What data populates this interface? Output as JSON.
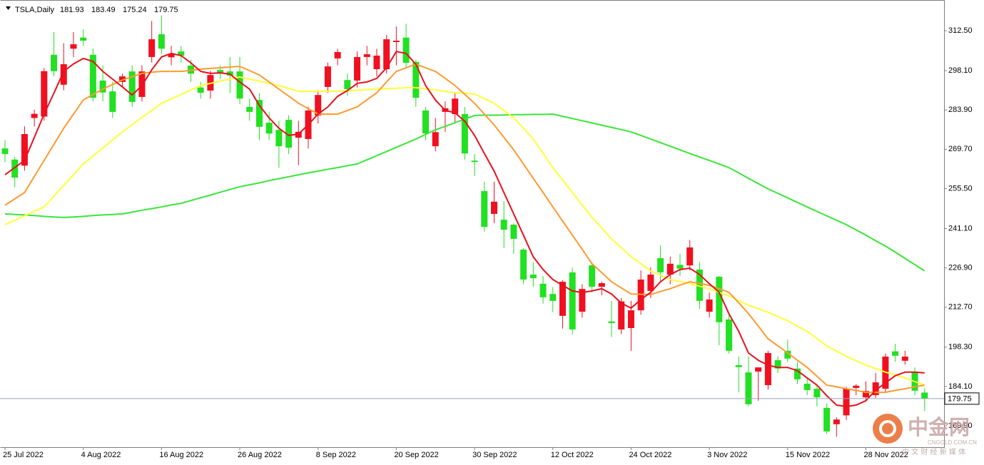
{
  "chart_data": {
    "type": "candlestick",
    "symbol": "TSLA,Daily",
    "categories": [
      "25 Jul 2022",
      null,
      null,
      null,
      null,
      null,
      null,
      null,
      "4 Aug 2022",
      null,
      null,
      null,
      null,
      null,
      null,
      null,
      "16 Aug 2022",
      null,
      null,
      null,
      null,
      null,
      null,
      null,
      "26 Aug 2022",
      null,
      null,
      null,
      null,
      null,
      null,
      null,
      "8 Sep 2022",
      null,
      null,
      null,
      null,
      null,
      null,
      null,
      "20 Sep 2022",
      null,
      null,
      null,
      null,
      null,
      null,
      null,
      "30 Sep 2022",
      null,
      null,
      null,
      null,
      null,
      null,
      null,
      "12 Oct 2022",
      null,
      null,
      null,
      null,
      null,
      null,
      null,
      "24 Oct 2022",
      null,
      null,
      null,
      null,
      null,
      null,
      null,
      "3 Nov 2022",
      null,
      null,
      null,
      null,
      null,
      null,
      null,
      "15 Nov 2022",
      null,
      null,
      null,
      null,
      null,
      null,
      null,
      "28 Nov 2022",
      null,
      null,
      null,
      null,
      null,
      null
    ],
    "open": [
      270,
      266,
      263.8,
      281,
      281.5,
      303.8,
      293,
      306,
      310,
      303.8,
      294.5,
      290.6,
      294,
      297.8,
      288.6,
      303,
      311.2,
      302.9,
      305,
      299.9,
      292,
      290.9,
      298.3,
      297.8,
      297.8,
      285,
      287.5,
      279.3,
      276.7,
      280.3,
      273.9,
      273.4,
      281.9,
      292.2,
      302.5,
      294.7,
      294.5,
      303,
      298.6,
      298.6,
      308.4,
      310,
      301.2,
      283.7,
      270.8,
      283.2,
      282.4,
      282.4,
      265.6,
      254.6,
      246.4,
      244.3,
      242.5,
      233.5,
      224.5,
      221.2,
      217.5,
      209.6,
      225.3,
      211.1,
      227.8,
      220.1,
      207.6,
      204.7,
      205.2,
      211.6,
      218.6,
      230.4,
      224.5,
      228,
      227.8,
      226.3,
      211.1,
      223.7,
      208.3,
      191.8,
      189.2,
      189.5,
      184.6,
      193.6,
      197,
      190.6,
      185.1,
      183.3,
      176.4,
      170.5,
      173.7,
      183.6,
      180.2,
      181,
      183.3,
      196.8,
      193.4,
      189.2,
      181.93
    ],
    "high": [
      273,
      267,
      278,
      284,
      299,
      312,
      308,
      312,
      313,
      306,
      300,
      294,
      297,
      300,
      300,
      316,
      318,
      307,
      307,
      302,
      294,
      298,
      300,
      303,
      303,
      288,
      290,
      283,
      280,
      282,
      280,
      285,
      291,
      301,
      306,
      297,
      305,
      307,
      306,
      311,
      314,
      315,
      302,
      285,
      281,
      287,
      290,
      285,
      268,
      258,
      258,
      251,
      243,
      234,
      229,
      224,
      220,
      222.5,
      227,
      221,
      229,
      222,
      215,
      216,
      215,
      226,
      227,
      235,
      231,
      232,
      237,
      229,
      218,
      224,
      210,
      195,
      195,
      191,
      197,
      195,
      201,
      193,
      187,
      185,
      178,
      173,
      184,
      185,
      186,
      189,
      196,
      199.5,
      197,
      191,
      183.49
    ],
    "low": [
      265,
      256,
      262,
      278,
      280,
      296,
      291,
      303,
      307,
      287,
      287,
      281,
      292,
      285,
      287,
      301,
      304,
      300,
      301,
      294,
      288,
      288,
      295,
      290,
      286,
      280,
      273,
      273,
      263,
      268,
      264,
      270,
      279,
      290,
      300,
      289,
      292,
      300,
      296,
      297,
      300,
      299,
      285,
      273,
      269,
      276,
      279,
      266,
      260,
      240,
      243,
      234,
      232,
      221,
      220,
      214,
      211,
      205,
      203,
      209,
      218,
      217,
      202,
      203,
      197,
      210,
      216,
      222,
      221,
      224,
      226,
      212,
      209,
      199,
      196,
      182,
      177,
      179,
      183,
      189,
      193,
      185,
      181,
      177,
      167,
      166,
      172,
      181,
      179,
      180,
      182,
      193,
      192,
      181,
      175.24
    ],
    "close": [
      268,
      259.5,
      275.2,
      282.5,
      297.9,
      297.9,
      300.4,
      307.6,
      308.9,
      288.3,
      290.2,
      283.2,
      296,
      286.8,
      297.8,
      309.4,
      306,
      304.2,
      303.5,
      297,
      290.1,
      296.5,
      297,
      296.3,
      288,
      283.2,
      277.8,
      275.4,
      270.8,
      270.3,
      276,
      283.7,
      289.3,
      299.6,
      304.8,
      291.4,
      303,
      304,
      303.5,
      309.4,
      308.9,
      300.9,
      288.3,
      275.4,
      275.9,
      284.5,
      288,
      268.2,
      265.1,
      241.7,
      250.8,
      240.7,
      237.4,
      222.7,
      223.2,
      216.3,
      215,
      221.9,
      204.7,
      219.3,
      220.1,
      221.4,
      207,
      214.8,
      211.6,
      222.7,
      224.5,
      225.3,
      228.4,
      226.6,
      234.3,
      215,
      215.5,
      207.3,
      197,
      191.1,
      177.7,
      191,
      196.2,
      190.6,
      194.2,
      186.7,
      182.8,
      180.2,
      167.9,
      172.2,
      183.3,
      184.4,
      182.5,
      185.6,
      194.9,
      195.2,
      194.9,
      182.6,
      179.75
    ],
    "up_color": "#f01020",
    "down_color": "#22e022",
    "moving_averages": [
      {
        "color": "#39e639",
        "values": [
          246.4,
          246.2,
          246,
          245.8,
          245.5,
          245.3,
          245.1,
          245.3,
          245.5,
          245.8,
          246,
          246.2,
          246.4,
          247,
          247.7,
          248.3,
          248.9,
          249.6,
          250.2,
          251.2,
          252.2,
          253.2,
          254.2,
          255.2,
          256.2,
          256.9,
          257.6,
          258.4,
          259.1,
          259.8,
          260.5,
          261.2,
          261.8,
          262.5,
          263.1,
          263.8,
          264.4,
          265.9,
          267.4,
          268.9,
          270.4,
          271.9,
          273.4,
          275.1,
          276.7,
          278,
          279.3,
          280.6,
          281.9,
          282,
          282,
          282.1,
          282.2,
          282.2,
          282.3,
          282.3,
          282.4,
          281.6,
          280.8,
          280,
          279.2,
          278.4,
          277.6,
          276.8,
          276,
          274.7,
          273.4,
          272.1,
          270.8,
          269.5,
          268.2,
          266.9,
          265.7,
          264.4,
          263.1,
          261.2,
          259.2,
          257.3,
          255.4,
          253.8,
          252.2,
          250.5,
          248.9,
          247.3,
          245.7,
          244.1,
          242.5,
          240.6,
          238.7,
          236.7,
          234.8,
          232.6,
          230.3,
          228.1,
          225.8
        ]
      },
      {
        "color": "#ffff33",
        "values": [
          242.5,
          244.1,
          245.7,
          247.3,
          248.9,
          252.8,
          256.7,
          260.5,
          264.4,
          267.3,
          270.2,
          273.1,
          276,
          278.6,
          281.2,
          283.7,
          286.3,
          287.9,
          289.5,
          291.1,
          292.7,
          293.5,
          294.3,
          295,
          295.8,
          295,
          294.3,
          293.5,
          292.7,
          291.7,
          290.6,
          290.6,
          290.6,
          290.6,
          290.6,
          290.8,
          291,
          291.2,
          291.4,
          291.6,
          291.7,
          291.9,
          292,
          291.5,
          291.1,
          290.6,
          290.1,
          289.9,
          289.6,
          288,
          286.3,
          283.7,
          281.1,
          277.3,
          273.4,
          268.3,
          263.1,
          258.6,
          254.1,
          249.6,
          245.1,
          241.3,
          237.4,
          234.2,
          230.9,
          228.4,
          225.8,
          224.3,
          222.7,
          222,
          221.2,
          220.3,
          219.4,
          218.1,
          216.8,
          215.1,
          213.4,
          212.2,
          210.9,
          209.4,
          207.8,
          205.9,
          204,
          201.4,
          198.8,
          196.9,
          195,
          193.4,
          191.8,
          190.6,
          189.3,
          188.3,
          187.2,
          185.9,
          184.6
        ]
      },
      {
        "color": "#ff9a2e",
        "values": [
          249.5,
          251.8,
          254.1,
          259.9,
          265.7,
          271.5,
          277.3,
          282.4,
          287.5,
          289.5,
          291.4,
          293.1,
          294.7,
          295.9,
          297.1,
          297.5,
          297.8,
          297.8,
          297.8,
          298.2,
          298.6,
          298.9,
          299.1,
          299.4,
          299.6,
          298.1,
          296.5,
          294,
          291.4,
          288.9,
          286.3,
          284.4,
          282.4,
          282.4,
          282.4,
          283.7,
          285,
          287.6,
          290.1,
          294,
          297.8,
          299.1,
          300.4,
          299.1,
          297.8,
          295.3,
          292.7,
          289.5,
          286.3,
          282.4,
          278.5,
          274,
          269.5,
          264.4,
          259.2,
          254.1,
          248.9,
          243.8,
          238.7,
          233.6,
          228.4,
          225.2,
          221.9,
          219.7,
          217.5,
          217.4,
          217.3,
          218.4,
          219.4,
          220.7,
          221.9,
          221.3,
          220.6,
          219.4,
          218.1,
          214.3,
          210.4,
          205.9,
          201.3,
          198.8,
          196.2,
          193.6,
          191,
          187.8,
          184.6,
          184,
          183.3,
          182.7,
          182,
          182,
          182,
          182.7,
          183.3,
          184,
          184.6
        ]
      },
      {
        "color": "#e8101c",
        "values": [
          260.5,
          263.1,
          265.7,
          274,
          282.4,
          290,
          297.8,
          300.5,
          302.5,
          301.4,
          297.8,
          295,
          292.2,
          289.3,
          292.7,
          298.4,
          303,
          304.3,
          303.5,
          300.9,
          297.8,
          297.1,
          297.3,
          296.8,
          294,
          291.4,
          285.5,
          281,
          277.3,
          274.7,
          275.2,
          278.6,
          282.4,
          285,
          288.8,
          290.9,
          293.5,
          294,
          295.3,
          299.1,
          305,
          304.3,
          300.4,
          292.7,
          287.5,
          283.7,
          282.9,
          279.8,
          274.7,
          268.2,
          261.8,
          254.1,
          246.4,
          238.7,
          230.9,
          226.3,
          222.7,
          220.6,
          218.6,
          218,
          218.6,
          219.4,
          217.5,
          214.2,
          212.4,
          215.5,
          218.1,
          221.9,
          224.5,
          226.3,
          226.8,
          224.5,
          221.2,
          218.1,
          210.4,
          204,
          196.2,
          193.6,
          191.8,
          191,
          191,
          189.8,
          187.2,
          184.6,
          180.8,
          177.4,
          176.9,
          177.4,
          179,
          182.8,
          185.4,
          188,
          189.3,
          189.3,
          189
        ]
      }
    ],
    "ylim": [
      162.22,
      323.57
    ],
    "yticks": [
      {
        "value": 312.5,
        "label": "312.50"
      },
      {
        "value": 298.1,
        "label": "298.10"
      },
      {
        "value": 283.9,
        "label": "283.90"
      },
      {
        "value": 269.7,
        "label": "269.70"
      },
      {
        "value": 255.5,
        "label": "255.50"
      },
      {
        "value": 241.1,
        "label": "241.10"
      },
      {
        "value": 226.9,
        "label": "226.90"
      },
      {
        "value": 212.7,
        "label": "212.70"
      },
      {
        "value": 198.3,
        "label": "198.30"
      },
      {
        "value": 184.1,
        "label": "184.10"
      },
      {
        "value": 169.9,
        "label": "169.90"
      }
    ]
  },
  "watermark": {
    "name": "中金网",
    "site": "CNGOLD.COM.CN",
    "tagline": "中 文 财 经 新 媒 体"
  }
}
